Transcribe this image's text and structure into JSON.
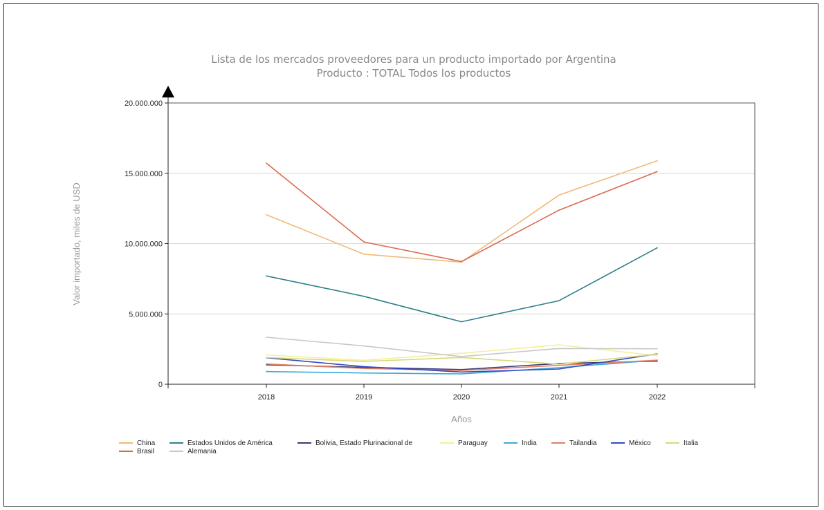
{
  "chart_data": {
    "type": "line",
    "title": "Lista de los mercados proveedores para un producto importado por Argentina",
    "subtitle": "Producto : TOTAL Todos los productos",
    "xlabel": "Años",
    "ylabel": "Valor importado, miles de USD",
    "x": [
      "2018",
      "2019",
      "2020",
      "2021",
      "2022"
    ],
    "ylim": [
      0,
      20000000
    ],
    "yticks": [
      0,
      5000000,
      10000000,
      15000000,
      20000000
    ],
    "ytick_labels": [
      "0",
      "5.000.000",
      "10.000.000",
      "15.000.000",
      "20.000.000"
    ],
    "grid": true,
    "legend_position": "bottom",
    "series": [
      {
        "name": "China",
        "color": "#f2b875",
        "values": [
          12050000,
          9250000,
          8680000,
          13450000,
          15890000
        ]
      },
      {
        "name": "Estados Unidos de América",
        "color": "#2f7f8a",
        "values": [
          7700000,
          6250000,
          4440000,
          5940000,
          9700000
        ]
      },
      {
        "name": "Bolivia, Estado Plurinacional de",
        "color": "#3b3b6b",
        "values": [
          1380000,
          1200000,
          1040000,
          1480000,
          1640000
        ]
      },
      {
        "name": "Paraguay",
        "color": "#f4ef9a",
        "values": [
          2090000,
          1700000,
          2200000,
          2800000,
          2030000
        ]
      },
      {
        "name": "India",
        "color": "#3aa9d8",
        "values": [
          900000,
          800000,
          730000,
          1180000,
          1710000
        ]
      },
      {
        "name": "Tailandia",
        "color": "#e07f62",
        "values": [
          1440000,
          1120000,
          980000,
          1340000,
          1710000
        ]
      },
      {
        "name": "México",
        "color": "#3349c9",
        "values": [
          1880000,
          1250000,
          870000,
          1080000,
          2160000
        ]
      },
      {
        "name": "Italia",
        "color": "#d8d87a",
        "values": [
          1900000,
          1620000,
          1900000,
          1430000,
          2140000
        ]
      },
      {
        "name": "Brasil",
        "color": "#d96a4e",
        "values": [
          15720000,
          10120000,
          8720000,
          12380000,
          15120000
        ]
      },
      {
        "name": "Alemania",
        "color": "#c8c8c8",
        "values": [
          3340000,
          2720000,
          1970000,
          2540000,
          2520000
        ]
      }
    ]
  }
}
